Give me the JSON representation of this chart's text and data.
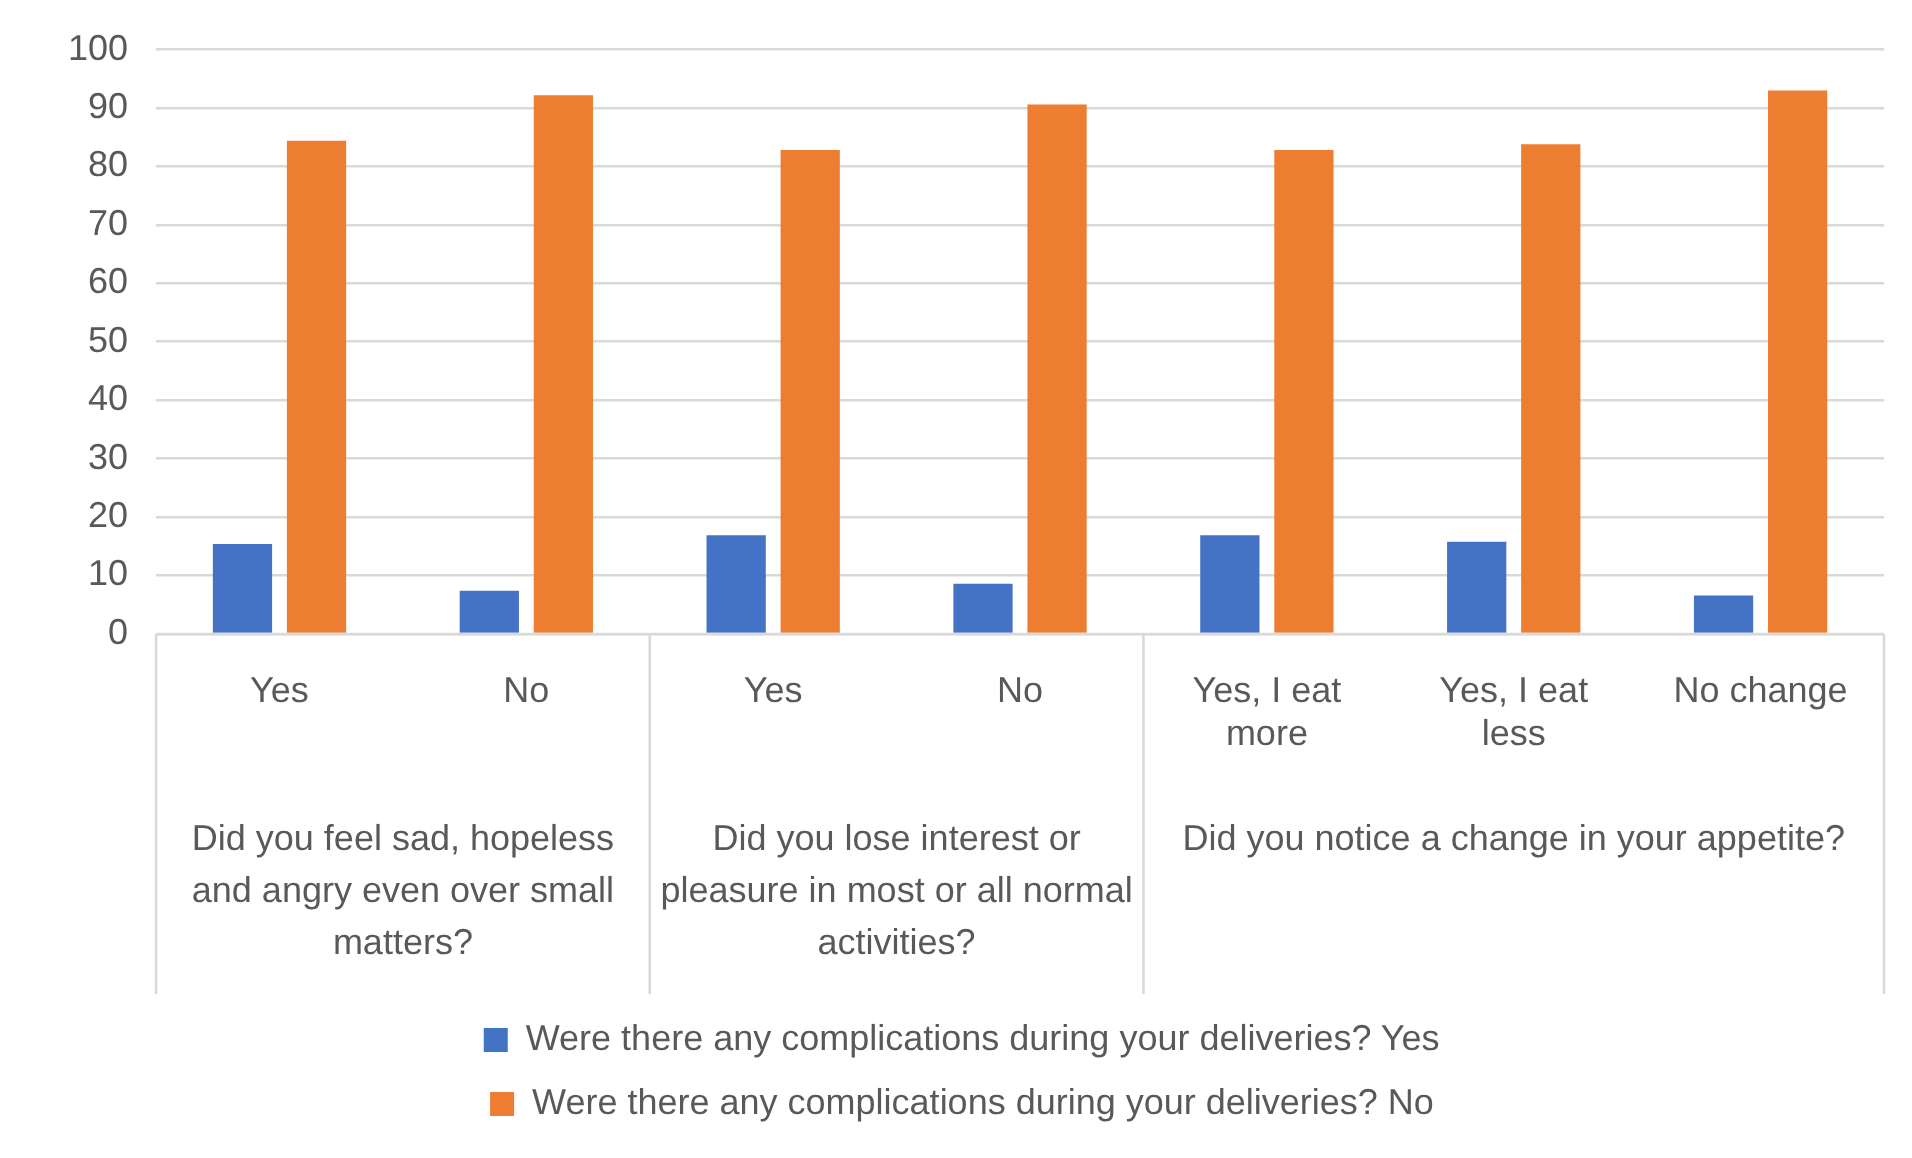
{
  "chart_data": {
    "type": "bar",
    "categories": [
      "Yes",
      "No",
      "Yes",
      "No",
      "Yes, I eat more",
      "Yes, I eat less",
      "No change"
    ],
    "annotations": [
      "Did you feel sad, hopeless and angry even over small matters?",
      "Did you lose interest or pleasure in most or all normal activities?",
      "Did you notice a change in your appetite?"
    ],
    "series": [
      {
        "name": "Were there any complications during your deliveries? Yes",
        "color": "#4472c4",
        "values": [
          15.4,
          7.4,
          16.9,
          8.6,
          16.9,
          15.8,
          6.6
        ]
      },
      {
        "name": "Were there any complications during your deliveries? No",
        "color": "#ed7d31",
        "values": [
          84.4,
          92.2,
          82.8,
          90.6,
          82.8,
          83.8,
          93
        ]
      }
    ],
    "ylim": [
      0,
      100
    ],
    "yticks": [
      0,
      10,
      20,
      30,
      40,
      50,
      60,
      70,
      80,
      90,
      100
    ],
    "grid": "y",
    "legend": "bottom"
  }
}
